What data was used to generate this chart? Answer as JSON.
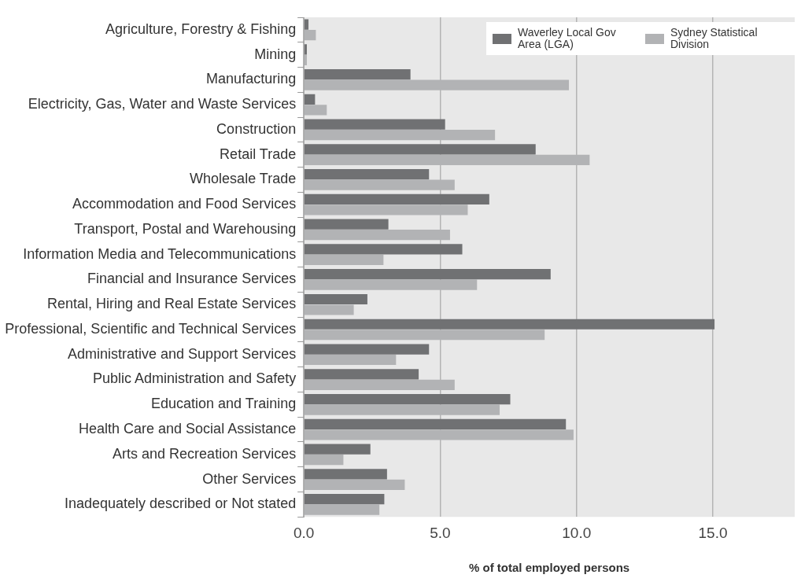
{
  "chart_data": {
    "type": "bar",
    "orientation": "horizontal",
    "xlabel": "% of total employed persons",
    "categories": [
      "Agriculture, Forestry & Fishing",
      "Mining",
      "Manufacturing",
      "Electricity, Gas, Water and Waste Services",
      "Construction",
      "Retail Trade",
      "Wholesale Trade",
      "Accommodation and Food Services",
      "Transport, Postal and Warehousing",
      "Information Media and Telecommunications",
      "Financial and Insurance Services",
      "Rental, Hiring and Real Estate Services",
      "Professional, Scientific and Technical Services",
      "Administrative and Support Services",
      "Public Administration and Safety",
      "Education and Training",
      "Health Care and Social Assistance",
      "Arts and Recreation Services",
      "Other Services",
      "Inadequately described or Not stated"
    ],
    "series": [
      {
        "name": "Waverley Local Gov Area (LGA)",
        "color": "#707173",
        "values": [
          0.17,
          0.11,
          3.91,
          0.41,
          5.18,
          8.5,
          4.59,
          6.8,
          3.1,
          5.81,
          9.05,
          2.33,
          15.06,
          4.59,
          4.21,
          7.57,
          9.61,
          2.44,
          3.05,
          2.95
        ]
      },
      {
        "name": "Sydney Statistical Division",
        "color": "#b2b3b5",
        "values": [
          0.44,
          0.11,
          9.72,
          0.84,
          7.01,
          10.48,
          5.53,
          6.01,
          5.36,
          2.92,
          6.35,
          1.83,
          8.83,
          3.38,
          5.53,
          7.18,
          9.89,
          1.45,
          3.7,
          2.77
        ]
      }
    ],
    "xlim": [
      0,
      18
    ],
    "xticks": [
      {
        "value": 0,
        "label": "0.0"
      },
      {
        "value": 5,
        "label": "5.0"
      },
      {
        "value": 10,
        "label": "10.0"
      },
      {
        "value": 15,
        "label": "15.0"
      }
    ],
    "grid": "x",
    "legend": "top right"
  }
}
